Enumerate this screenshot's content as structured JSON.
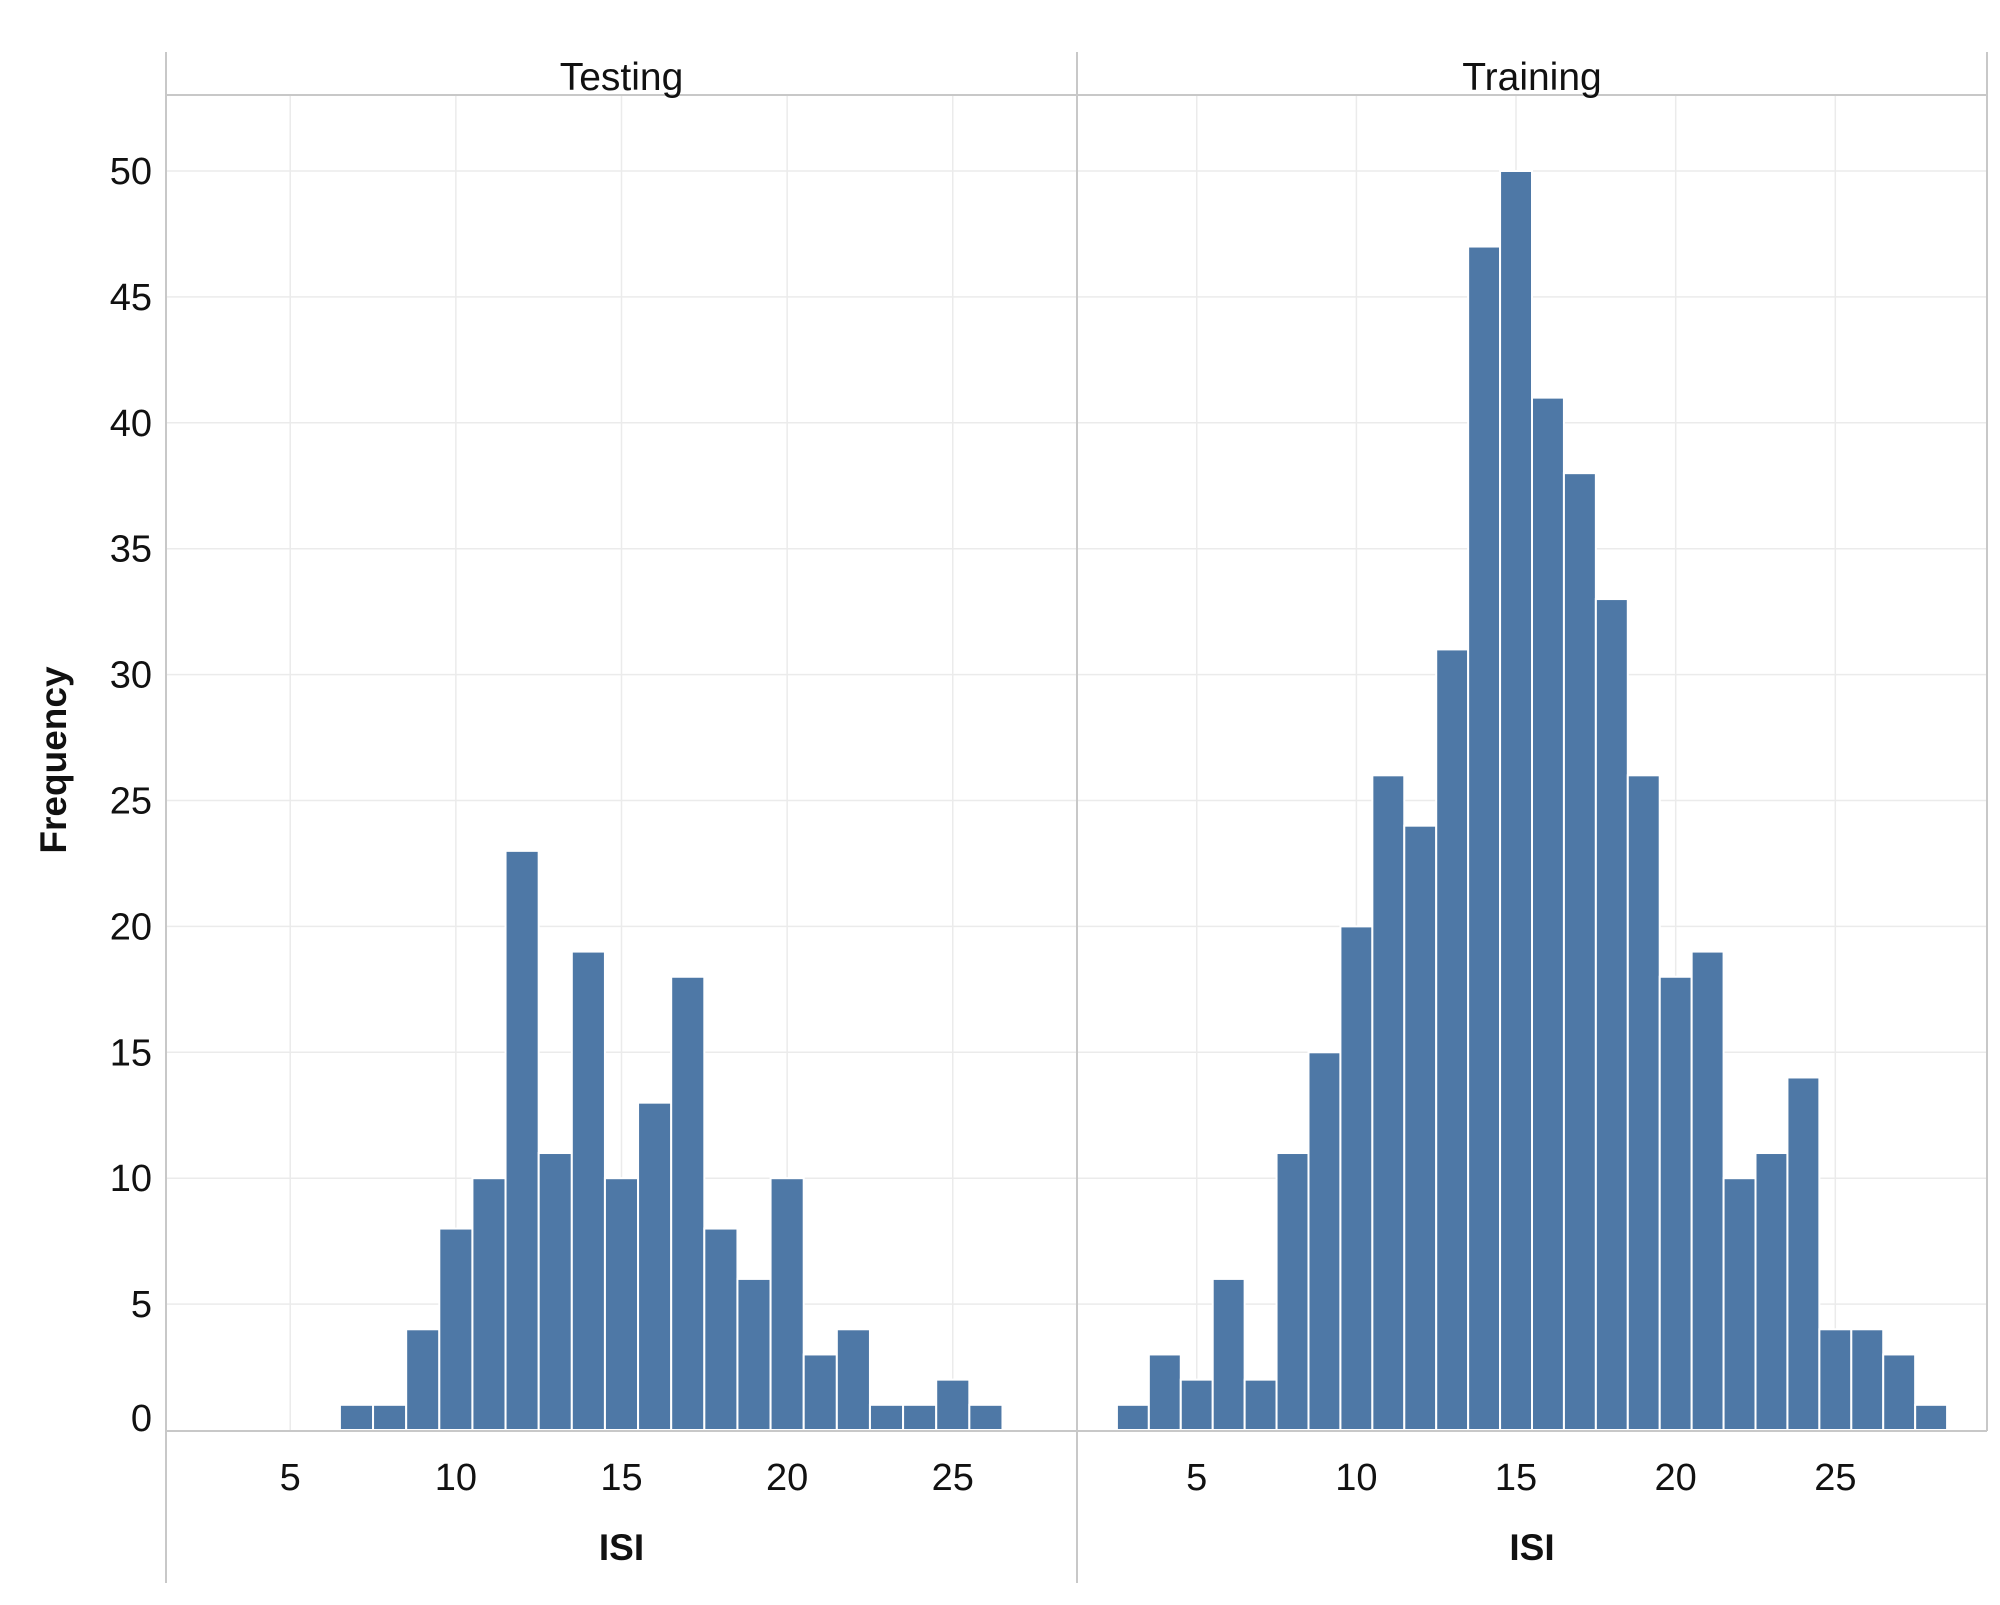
{
  "colors": {
    "bar": "#4e78a6",
    "bar_edge": "#ffffff",
    "grid": "#ebebeb",
    "axis": "#c8c8c8",
    "text": "#111111"
  },
  "chart_data": {
    "type": "bar",
    "ylabel": "Frequency",
    "ylim": [
      0,
      52
    ],
    "yticks": [
      0,
      5,
      10,
      15,
      20,
      25,
      30,
      35,
      40,
      45,
      50
    ],
    "yticks_labels": [
      "0",
      "5",
      "10",
      "15",
      "20",
      "25",
      "30",
      "35",
      "40",
      "45",
      "50"
    ],
    "grid": true,
    "panels": [
      {
        "title": "Testing",
        "xlabel": "ISI",
        "xlim": [
          1.25,
          28.75
        ],
        "xticks": [
          5,
          10,
          15,
          20,
          25
        ],
        "xticks_labels": [
          "5",
          "10",
          "15",
          "20",
          "25"
        ],
        "bin_width": 1,
        "bins": [
          {
            "x": 7,
            "count": 1
          },
          {
            "x": 8,
            "count": 1
          },
          {
            "x": 9,
            "count": 4
          },
          {
            "x": 10,
            "count": 8
          },
          {
            "x": 11,
            "count": 10
          },
          {
            "x": 12,
            "count": 23
          },
          {
            "x": 13,
            "count": 11
          },
          {
            "x": 14,
            "count": 19
          },
          {
            "x": 15,
            "count": 10
          },
          {
            "x": 16,
            "count": 13
          },
          {
            "x": 17,
            "count": 18
          },
          {
            "x": 18,
            "count": 8
          },
          {
            "x": 19,
            "count": 6
          },
          {
            "x": 20,
            "count": 10
          },
          {
            "x": 21,
            "count": 3
          },
          {
            "x": 22,
            "count": 4
          },
          {
            "x": 23,
            "count": 1
          },
          {
            "x": 24,
            "count": 1
          },
          {
            "x": 25,
            "count": 2
          },
          {
            "x": 26,
            "count": 1
          }
        ]
      },
      {
        "title": "Training",
        "xlabel": "ISI",
        "xlim": [
          1.25,
          29.75
        ],
        "xticks": [
          5,
          10,
          15,
          20,
          25
        ],
        "xticks_labels": [
          "5",
          "10",
          "15",
          "20",
          "25"
        ],
        "bin_width": 1,
        "bins": [
          {
            "x": 3,
            "count": 1
          },
          {
            "x": 4,
            "count": 3
          },
          {
            "x": 5,
            "count": 2
          },
          {
            "x": 6,
            "count": 6
          },
          {
            "x": 7,
            "count": 2
          },
          {
            "x": 8,
            "count": 11
          },
          {
            "x": 9,
            "count": 15
          },
          {
            "x": 10,
            "count": 20
          },
          {
            "x": 11,
            "count": 26
          },
          {
            "x": 12,
            "count": 24
          },
          {
            "x": 13,
            "count": 31
          },
          {
            "x": 14,
            "count": 47
          },
          {
            "x": 15,
            "count": 50
          },
          {
            "x": 16,
            "count": 41
          },
          {
            "x": 17,
            "count": 38
          },
          {
            "x": 18,
            "count": 33
          },
          {
            "x": 19,
            "count": 26
          },
          {
            "x": 20,
            "count": 18
          },
          {
            "x": 21,
            "count": 19
          },
          {
            "x": 22,
            "count": 10
          },
          {
            "x": 23,
            "count": 11
          },
          {
            "x": 24,
            "count": 14
          },
          {
            "x": 25,
            "count": 4
          },
          {
            "x": 26,
            "count": 4
          },
          {
            "x": 27,
            "count": 3
          },
          {
            "x": 28,
            "count": 1
          }
        ]
      }
    ]
  }
}
